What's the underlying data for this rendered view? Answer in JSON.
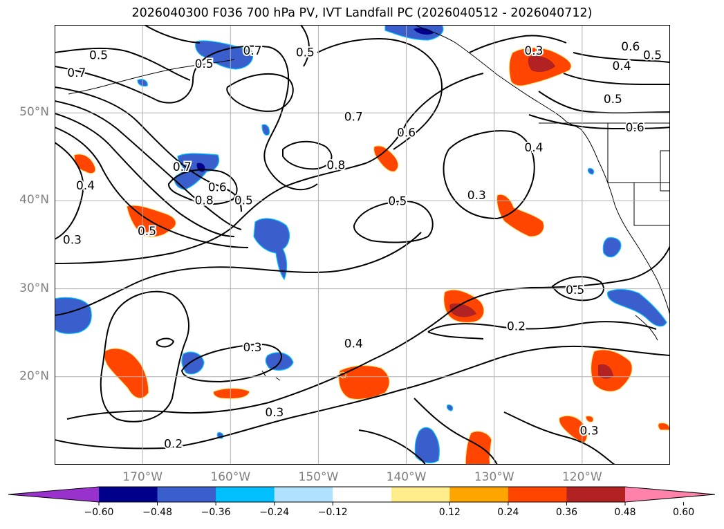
{
  "title": "2026040300 F036 700 hPa PV, IVT Landfall PC (2026040512 - 2026040712)",
  "map": {
    "lon_range": [
      -180,
      -110
    ],
    "lat_range": [
      10,
      60
    ],
    "lat_ticks": [
      {
        "value": 50,
        "label": "50°N"
      },
      {
        "value": 40,
        "label": "40°N"
      },
      {
        "value": 30,
        "label": "30°N"
      },
      {
        "value": 20,
        "label": "20°N"
      }
    ],
    "lon_ticks": [
      {
        "value": -170,
        "label": "170°W"
      },
      {
        "value": -160,
        "label": "160°W"
      },
      {
        "value": -150,
        "label": "150°W"
      },
      {
        "value": -140,
        "label": "140°W"
      },
      {
        "value": -130,
        "label": "130°W"
      },
      {
        "value": -120,
        "label": "120°W"
      }
    ],
    "grid": true,
    "contour_labels": [
      {
        "text": "0.7",
        "lon": -177.5,
        "lat": 54.5
      },
      {
        "text": "0.5",
        "lon": -175.0,
        "lat": 56.5
      },
      {
        "text": "0.5",
        "lon": -163.0,
        "lat": 55.5
      },
      {
        "text": "0.7",
        "lon": -157.5,
        "lat": 57.0
      },
      {
        "text": "0.5",
        "lon": -151.5,
        "lat": 56.8
      },
      {
        "text": "0.7",
        "lon": -146.0,
        "lat": 49.5
      },
      {
        "text": "0.8",
        "lon": -148.0,
        "lat": 44.0
      },
      {
        "text": "0.6",
        "lon": -140.0,
        "lat": 47.7
      },
      {
        "text": "0.3",
        "lon": -125.5,
        "lat": 57.0
      },
      {
        "text": "0.6",
        "lon": -114.5,
        "lat": 57.5
      },
      {
        "text": "0.5",
        "lon": -112.0,
        "lat": 56.5
      },
      {
        "text": "0.4",
        "lon": -115.5,
        "lat": 55.3
      },
      {
        "text": "0.5",
        "lon": -116.5,
        "lat": 51.5
      },
      {
        "text": "0.6",
        "lon": -114.0,
        "lat": 48.3
      },
      {
        "text": "0.4",
        "lon": -125.5,
        "lat": 46.0
      },
      {
        "text": "0.7",
        "lon": -165.5,
        "lat": 43.8
      },
      {
        "text": "0.8",
        "lon": -163.0,
        "lat": 40.0
      },
      {
        "text": "0.6",
        "lon": -161.5,
        "lat": 41.5
      },
      {
        "text": "0.5",
        "lon": -158.5,
        "lat": 40.0
      },
      {
        "text": "0.5",
        "lon": -169.5,
        "lat": 36.5
      },
      {
        "text": "0.4",
        "lon": -176.5,
        "lat": 41.7
      },
      {
        "text": "0.3",
        "lon": -178.0,
        "lat": 35.5
      },
      {
        "text": "0.5",
        "lon": -141.0,
        "lat": 39.9
      },
      {
        "text": "0.3",
        "lon": -132.0,
        "lat": 40.6
      },
      {
        "text": "0.5",
        "lon": -120.8,
        "lat": 29.8
      },
      {
        "text": "0.2",
        "lon": -127.5,
        "lat": 25.7
      },
      {
        "text": "0.4",
        "lon": -146.0,
        "lat": 23.7
      },
      {
        "text": "0.3",
        "lon": -157.5,
        "lat": 23.3
      },
      {
        "text": "0.3",
        "lon": -155.0,
        "lat": 15.9
      },
      {
        "text": "0.3",
        "lon": -119.2,
        "lat": 13.8
      },
      {
        "text": "0.2",
        "lon": -166.5,
        "lat": 12.3
      }
    ]
  },
  "colorbar": {
    "colors": [
      "#9932cc",
      "#00008b",
      "#3a5fcd",
      "#00bfff",
      "#b0e2ff",
      "#ffffff",
      "#ffec8b",
      "#ffa500",
      "#ff4500",
      "#b22222",
      "#ff82ab"
    ],
    "ticks": [
      "−0.60",
      "−0.48",
      "−0.36",
      "−0.24",
      "−0.12",
      "0.12",
      "0.24",
      "0.36",
      "0.48",
      "0.60"
    ]
  }
}
